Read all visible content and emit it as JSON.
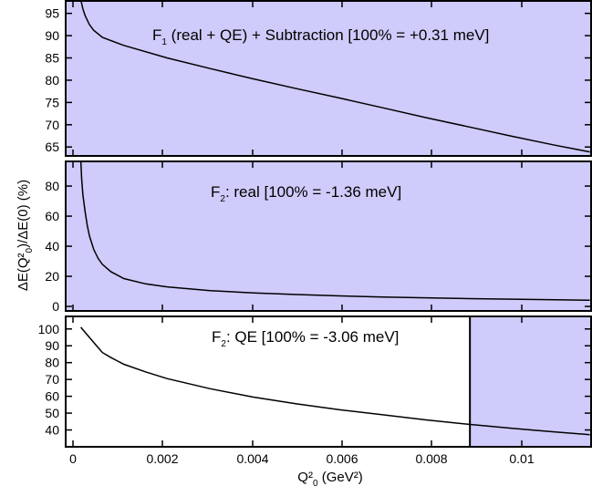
{
  "chart_data": [
    {
      "type": "area",
      "title_main": "F",
      "title_sub": "1",
      "title_rest": " (real + QE) + Subtraction [100% = +0.31 meV]",
      "xlim": [
        -0.00035,
        0.01185
      ],
      "ylim": [
        63,
        98
      ],
      "yticks": [
        65,
        70,
        75,
        80,
        85,
        90,
        95
      ],
      "ytick_labels": [
        "65",
        "70",
        "75",
        "80",
        "85",
        "90",
        "95"
      ],
      "fill_color": "#cfcbfa",
      "shaded_x_range": [
        -0.00035,
        0.01185
      ],
      "series": [
        {
          "x": [
            0,
            5e-05,
            0.0001,
            0.0002,
            0.0003,
            0.0005,
            0.001,
            0.002,
            0.003,
            0.004,
            0.005,
            0.006,
            0.007,
            0.008,
            0.009,
            0.01,
            0.011,
            0.0118
          ],
          "y": [
            98,
            96,
            94.5,
            92.5,
            91.2,
            89.6,
            87.8,
            85.0,
            82.6,
            80.3,
            78.1,
            76.0,
            73.8,
            71.6,
            69.5,
            67.4,
            65.4,
            63.9
          ]
        }
      ]
    },
    {
      "type": "area",
      "title_main": "F",
      "title_sub": "2",
      "title_rest": ": real [100% = -1.36 meV]",
      "xlim": [
        -0.00035,
        0.01185
      ],
      "ylim": [
        -3,
        97
      ],
      "yticks": [
        0,
        20,
        40,
        60,
        80
      ],
      "ytick_labels": [
        "0",
        "20",
        "40",
        "60",
        "80"
      ],
      "fill_color": "#cfcbfa",
      "shaded_x_range": [
        -0.00035,
        0.01185
      ],
      "series": [
        {
          "x": [
            0,
            2e-05,
            5e-05,
            0.0001,
            0.00015,
            0.0002,
            0.0003,
            0.0004,
            0.0005,
            0.0007,
            0.001,
            0.0015,
            0.002,
            0.003,
            0.004,
            0.005,
            0.006,
            0.007,
            0.008,
            0.009,
            0.01,
            0.011,
            0.0118
          ],
          "y": [
            97,
            85,
            74,
            63,
            54,
            47,
            38,
            32,
            28,
            23,
            18.5,
            15,
            13,
            10.5,
            9,
            7.9,
            7,
            6.3,
            5.7,
            5.2,
            4.8,
            4.4,
            4.1
          ]
        }
      ]
    },
    {
      "type": "area",
      "title_main": "F",
      "title_sub": "2",
      "title_rest": ": QE [100% = -3.06 meV]",
      "xlim": [
        -0.00035,
        0.01185
      ],
      "ylim": [
        30,
        108
      ],
      "yticks": [
        40,
        50,
        60,
        70,
        80,
        90,
        100
      ],
      "ytick_labels": [
        "40",
        "50",
        "60",
        "70",
        "80",
        "90",
        "100"
      ],
      "xticks": [
        0,
        0.002,
        0.004,
        0.006,
        0.008,
        0.01
      ],
      "xtick_labels": [
        "0",
        "0.002",
        "0.004",
        "0.006",
        "0.008",
        "0.01"
      ],
      "fill_color": "#cfcbfa",
      "shaded_x_range": [
        0.00902,
        0.01185
      ],
      "series": [
        {
          "x": [
            0,
            0.0001,
            0.0002,
            0.0003,
            0.0004,
            0.0005,
            0.0007,
            0.001,
            0.0015,
            0.002,
            0.003,
            0.004,
            0.005,
            0.006,
            0.007,
            0.008,
            0.009,
            0.01,
            0.011,
            0.0118
          ],
          "y": [
            101,
            98,
            95,
            92,
            89,
            86,
            83,
            79,
            74.5,
            70.5,
            64.5,
            59.5,
            55.5,
            52,
            49,
            46,
            43.3,
            41,
            38.8,
            37.2
          ]
        }
      ]
    }
  ],
  "labels": {
    "ylabel_parts": [
      "ΔE(Q²",
      "0",
      ")/ΔE(0) (%)"
    ],
    "xlabel_parts": [
      "Q²",
      "0",
      " (GeV²)"
    ]
  }
}
